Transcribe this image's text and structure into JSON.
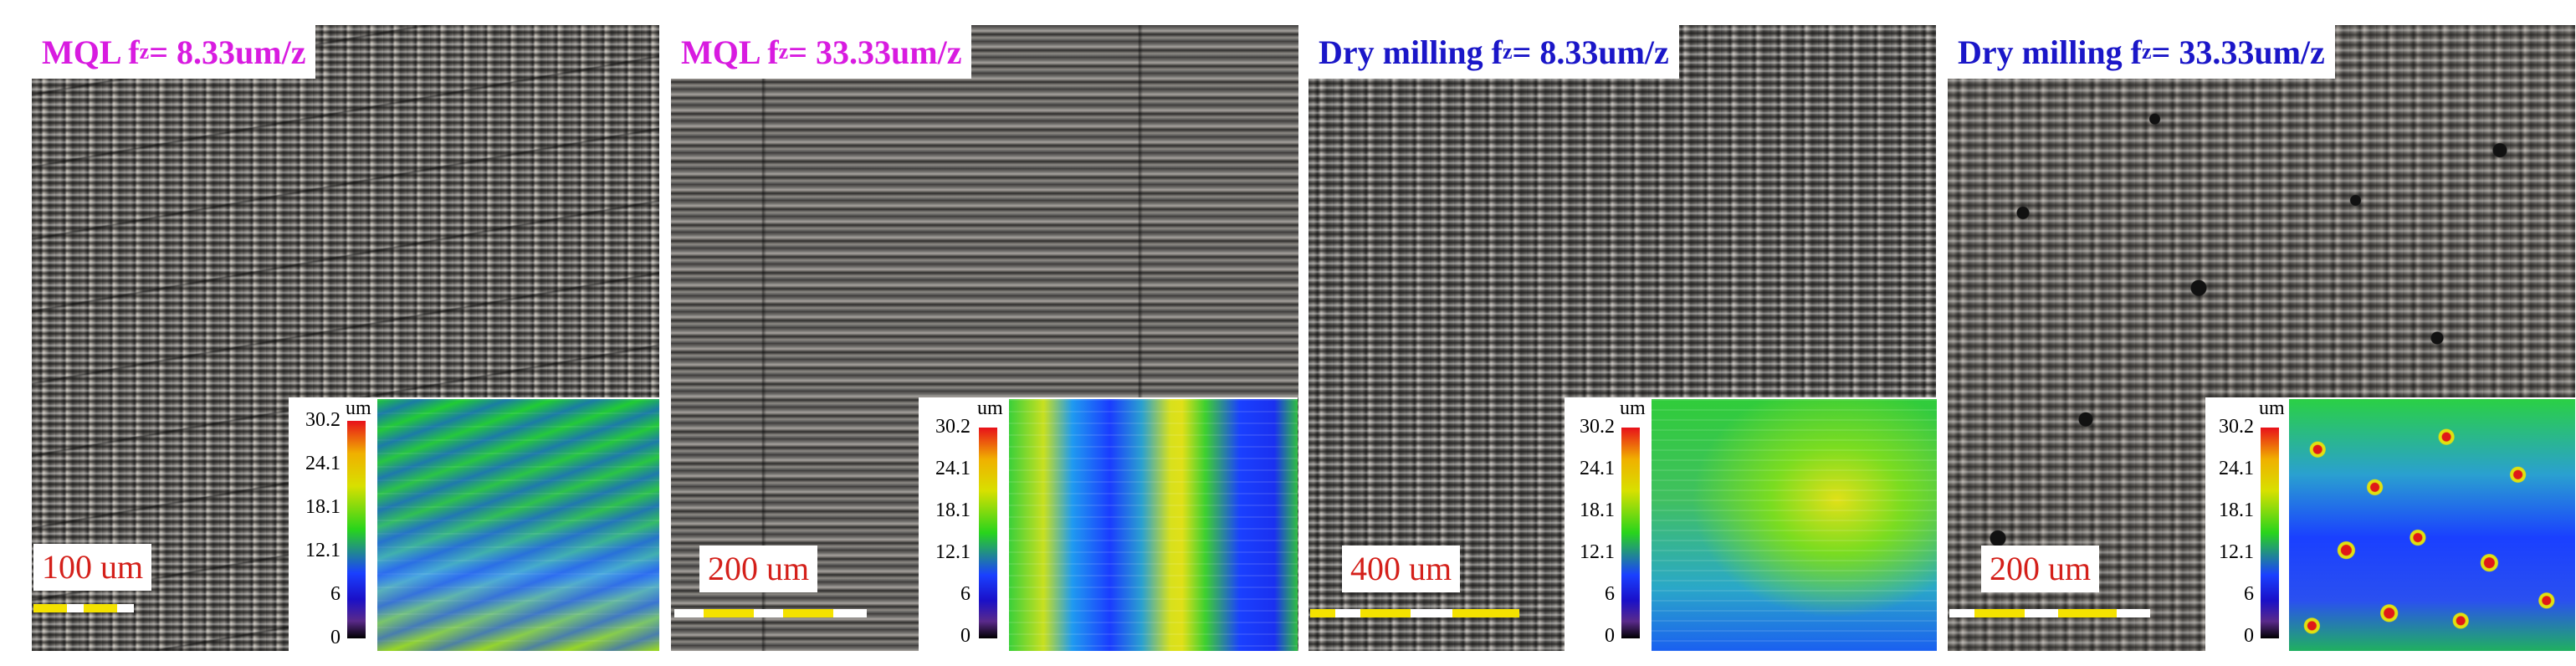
{
  "panels": [
    {
      "title_main": "MQL f",
      "title_sub": "z",
      "title_rest": " = 8.33um/z",
      "title_color": "#d81be0",
      "scale_label": "100 um",
      "colorbar_unit": "um",
      "colorbar_ticks": [
        "30.2",
        "24.1",
        "18.1",
        "12.1",
        "6",
        "0"
      ]
    },
    {
      "title_main": "MQL f",
      "title_sub": "z",
      "title_rest": " = 33.33um/z",
      "title_color": "#d81be0",
      "scale_label": "200 um",
      "colorbar_unit": "um",
      "colorbar_ticks": [
        "30.2",
        "24.1",
        "18.1",
        "12.1",
        "6",
        "0"
      ]
    },
    {
      "title_main": "Dry milling f",
      "title_sub": "z",
      "title_rest": " = 8.33um/z",
      "title_color": "#1a16c8",
      "scale_label": "400 um",
      "colorbar_unit": "um",
      "colorbar_ticks": [
        "30.2",
        "24.1",
        "18.1",
        "12.1",
        "6",
        "0"
      ]
    },
    {
      "title_main": "Dry milling f",
      "title_sub": "z",
      "title_rest": " = 33.33um/z",
      "title_color": "#1a16c8",
      "scale_label": "200 um",
      "colorbar_unit": "um",
      "colorbar_ticks": [
        "30.2",
        "24.1",
        "18.1",
        "12.1",
        "6",
        "0"
      ]
    }
  ]
}
